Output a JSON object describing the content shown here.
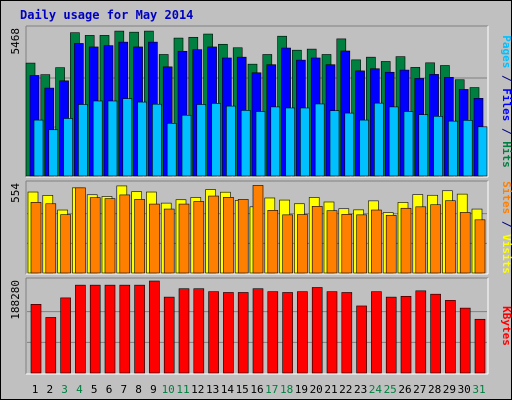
{
  "chart_data": {
    "type": "bar",
    "title": "Daily usage for May 2014",
    "days": [
      {
        "label": "1",
        "weekend": false
      },
      {
        "label": "2",
        "weekend": false
      },
      {
        "label": "3",
        "weekend": true
      },
      {
        "label": "4",
        "weekend": true
      },
      {
        "label": "5",
        "weekend": false
      },
      {
        "label": "6",
        "weekend": false
      },
      {
        "label": "7",
        "weekend": false
      },
      {
        "label": "8",
        "weekend": false
      },
      {
        "label": "9",
        "weekend": false
      },
      {
        "label": "10",
        "weekend": true
      },
      {
        "label": "11",
        "weekend": true
      },
      {
        "label": "12",
        "weekend": false
      },
      {
        "label": "13",
        "weekend": false
      },
      {
        "label": "14",
        "weekend": false
      },
      {
        "label": "15",
        "weekend": false
      },
      {
        "label": "16",
        "weekend": false
      },
      {
        "label": "17",
        "weekend": true
      },
      {
        "label": "18",
        "weekend": true
      },
      {
        "label": "19",
        "weekend": false
      },
      {
        "label": "20",
        "weekend": false
      },
      {
        "label": "21",
        "weekend": false
      },
      {
        "label": "22",
        "weekend": false
      },
      {
        "label": "23",
        "weekend": false
      },
      {
        "label": "24",
        "weekend": true
      },
      {
        "label": "25",
        "weekend": true
      },
      {
        "label": "26",
        "weekend": false
      },
      {
        "label": "27",
        "weekend": false
      },
      {
        "label": "28",
        "weekend": false
      },
      {
        "label": "29",
        "weekend": false
      },
      {
        "label": "30",
        "weekend": false
      },
      {
        "label": "31",
        "weekend": true
      }
    ],
    "panels": [
      {
        "ylabel_parts": [
          {
            "text": "Pages",
            "color": "#00c0ff"
          },
          {
            "text": " / ",
            "color": "#000080"
          },
          {
            "text": "Files",
            "color": "#0000ff"
          },
          {
            "text": " / ",
            "color": "#000080"
          },
          {
            "text": "Hits",
            "color": "#008040"
          }
        ],
        "ymax_label": "5468",
        "ymax": 5468,
        "series": [
          {
            "name": "Hits",
            "color": "#008040",
            "values": [
              4200,
              3770,
              4030,
              5330,
              5230,
              5230,
              5390,
              5350,
              5390,
              4520,
              5130,
              5160,
              5280,
              4900,
              4770,
              4160,
              4520,
              5200,
              4680,
              4720,
              4520,
              5100,
              4320,
              4420,
              4260,
              4440,
              4040,
              4210,
              4110,
              3580,
              3290
            ]
          },
          {
            "name": "Files",
            "color": "#0000ff",
            "values": [
              3740,
              3270,
              3540,
              4930,
              4800,
              4850,
              4980,
              4800,
              4980,
              4060,
              4640,
              4700,
              4800,
              4390,
              4420,
              3840,
              4140,
              4760,
              4310,
              4390,
              4140,
              4650,
              3910,
              3990,
              3860,
              3940,
              3630,
              3780,
              3670,
              3220,
              2890
            ]
          },
          {
            "name": "Pages",
            "color": "#00c0ff",
            "values": [
              2080,
              1720,
              2140,
              2660,
              2790,
              2790,
              2880,
              2750,
              2670,
              1960,
              2260,
              2660,
              2700,
              2600,
              2440,
              2400,
              2570,
              2530,
              2530,
              2680,
              2430,
              2340,
              2080,
              2710,
              2570,
              2400,
              2280,
              2220,
              2040,
              2070,
              1830
            ]
          }
        ]
      },
      {
        "ylabel_parts": [
          {
            "text": "Sites",
            "color": "#ff8000"
          },
          {
            "text": " / ",
            "color": "#000080"
          },
          {
            "text": "Visits",
            "color": "#ffff00"
          }
        ],
        "ymax_label": "554",
        "ymax": 554,
        "series": [
          {
            "name": "Visits",
            "color": "#ffff00",
            "values": [
              504,
              483,
              392,
              530,
              487,
              476,
              542,
              506,
              504,
              435,
              456,
              470,
              519,
              503,
              452,
              412,
              467,
              454,
              431,
              470,
              442,
              400,
              393,
              449,
              376,
              439,
              488,
              484,
              512,
              491,
              398
            ]
          },
          {
            "name": "Sites",
            "color": "#ff8000",
            "values": [
              440,
              431,
              363,
              530,
              469,
              463,
              486,
              458,
              429,
              398,
              429,
              445,
              479,
              471,
              458,
              545,
              390,
              362,
              364,
              415,
              388,
              365,
              362,
              392,
              359,
              403,
              412,
              425,
              450,
              377,
              331
            ]
          }
        ]
      },
      {
        "ylabel_parts": [
          {
            "text": "KBytes",
            "color": "#ff0000"
          }
        ],
        "ymax_label": "188280",
        "ymax": 188280,
        "series": [
          {
            "name": "KBytes",
            "color": "#ff0000",
            "values": [
              140600,
              113700,
              153700,
              179800,
              179800,
              179800,
              179800,
              179800,
              188280,
              155300,
              172500,
              172500,
              166500,
              164800,
              164800,
              172500,
              166500,
              164800,
              166500,
              175000,
              166500,
              164800,
              137200,
              166500,
              155300,
              157000,
              168200,
              161300,
              148700,
              132800,
              110000
            ]
          }
        ]
      }
    ]
  }
}
